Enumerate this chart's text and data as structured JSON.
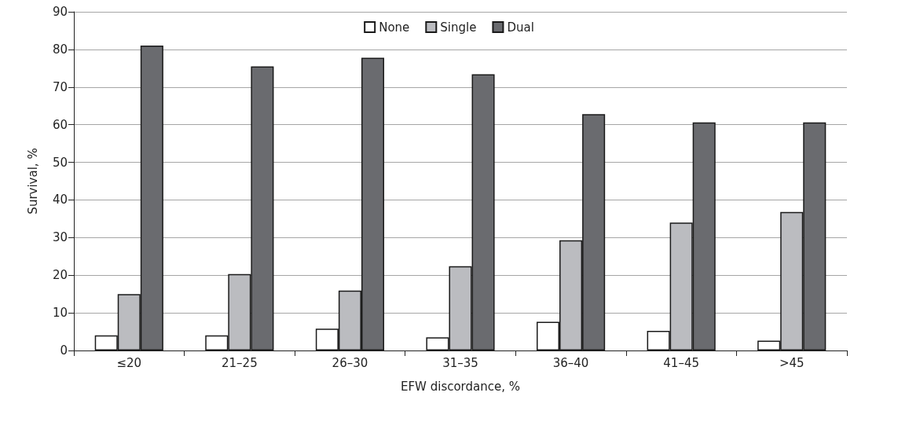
{
  "chart_data": {
    "type": "bar",
    "xlabel": "EFW discordance, %",
    "ylabel": "Survival, %",
    "categories": [
      "≤20",
      "21–25",
      "26–30",
      "31–35",
      "36–40",
      "41–45",
      ">45"
    ],
    "series": [
      {
        "name": "None",
        "color": "#ffffff",
        "values": [
          4,
          4,
          5.8,
          3.5,
          7.6,
          5.2,
          2.6
        ]
      },
      {
        "name": "Single",
        "color": "#bbbcc0",
        "values": [
          15,
          20.3,
          15.9,
          22.4,
          29.3,
          34,
          36.8
        ]
      },
      {
        "name": "Dual",
        "color": "#6a6b6f",
        "values": [
          81,
          75.5,
          77.8,
          73.4,
          62.8,
          60.6,
          60.6
        ]
      }
    ],
    "ylim": [
      0,
      90
    ],
    "yticks": [
      0,
      10,
      20,
      30,
      40,
      50,
      60,
      70,
      80,
      90
    ],
    "grid": "y",
    "legend": "top"
  }
}
